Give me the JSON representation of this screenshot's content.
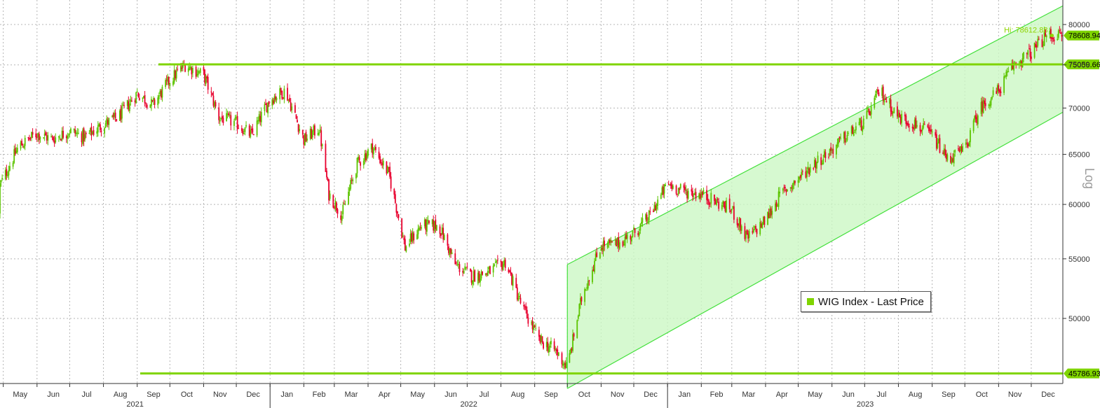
{
  "chart_data": {
    "type": "line",
    "style": "candlestick",
    "y_scale": "log",
    "ylim": [
      44600,
      82300
    ],
    "y_ticks": [
      "50000",
      "55000",
      "60000",
      "65000",
      "70000",
      "75000",
      "80000"
    ],
    "y_axis_note": "Log",
    "x_tick_labels": [
      "May",
      "Jun",
      "Jul",
      "Aug",
      "Sep",
      "Oct",
      "Nov",
      "Dec",
      "Jan",
      "Feb",
      "Mar",
      "Apr",
      "May",
      "Jun",
      "Jul",
      "Aug",
      "Sep",
      "Oct",
      "Nov",
      "Dec",
      "Jan",
      "Feb",
      "Mar",
      "Apr",
      "May",
      "Jun",
      "Jul",
      "Aug",
      "Sep",
      "Oct",
      "Nov",
      "Dec"
    ],
    "years": [
      "2021",
      "2022",
      "2023"
    ],
    "legend": "WIG Index - Last Price",
    "series_color": "#7fd400",
    "up_color": "#5cc400",
    "down_color": "#e8002d",
    "levels": [
      {
        "label": "78608.94",
        "value": 78608.94
      },
      {
        "label": "75059.66",
        "value": 75059.66
      },
      {
        "label": "45786.93",
        "value": 45786.93
      }
    ],
    "hi_annotation": "Hi: 78612.88",
    "hi_value": 78612.88,
    "channel": {
      "start": "2022-10-01",
      "end": "2023-12-31",
      "upper_start": 54500,
      "upper_end": 82500,
      "lower_start": 44700,
      "lower_end": 69600
    },
    "series": [
      {
        "dates": [
          "2021-04-15",
          "2021-05-01",
          "2021-05-15",
          "2021-06-01",
          "2021-06-15",
          "2021-07-01",
          "2021-07-15",
          "2021-08-01",
          "2021-08-15",
          "2021-09-01",
          "2021-09-15",
          "2021-10-01",
          "2021-10-15",
          "2021-11-01",
          "2021-11-15",
          "2021-12-01",
          "2021-12-15",
          "2022-01-01",
          "2022-01-15",
          "2022-02-01",
          "2022-02-15",
          "2022-02-24",
          "2022-03-08",
          "2022-03-22",
          "2022-04-05",
          "2022-04-20",
          "2022-05-05",
          "2022-05-20",
          "2022-06-05",
          "2022-06-20",
          "2022-07-05",
          "2022-07-20",
          "2022-08-05",
          "2022-08-20",
          "2022-09-05",
          "2022-09-20",
          "2022-10-01",
          "2022-10-15",
          "2022-11-01",
          "2022-11-15",
          "2022-12-01",
          "2022-12-15",
          "2023-01-01",
          "2023-01-15",
          "2023-02-01",
          "2023-02-15",
          "2023-03-01",
          "2023-03-15",
          "2023-04-01",
          "2023-04-15",
          "2023-05-01",
          "2023-05-15",
          "2023-06-01",
          "2023-06-15",
          "2023-07-01",
          "2023-07-15",
          "2023-08-01",
          "2023-08-15",
          "2023-09-01",
          "2023-09-15",
          "2023-10-01",
          "2023-10-15",
          "2023-11-01",
          "2023-11-15",
          "2023-12-01",
          "2023-12-15"
        ],
        "values": [
          59200,
          62500,
          65800,
          67200,
          66600,
          67500,
          66800,
          68200,
          69000,
          71700,
          70300,
          73200,
          75000,
          73800,
          69000,
          68300,
          67000,
          71000,
          72000,
          66500,
          67800,
          61000,
          59000,
          64000,
          65800,
          63000,
          56000,
          58000,
          58000,
          54500,
          53500,
          53800,
          54700,
          51000,
          48300,
          47500,
          46200,
          52000,
          56200,
          56300,
          57300,
          58800,
          62000,
          61300,
          61000,
          60200,
          59500,
          56800,
          58500,
          61000,
          62500,
          64000,
          65500,
          67000,
          68500,
          72000,
          69000,
          68300,
          67000,
          64500,
          65500,
          70000,
          72000,
          75000,
          76500,
          78600
        ]
      }
    ]
  }
}
